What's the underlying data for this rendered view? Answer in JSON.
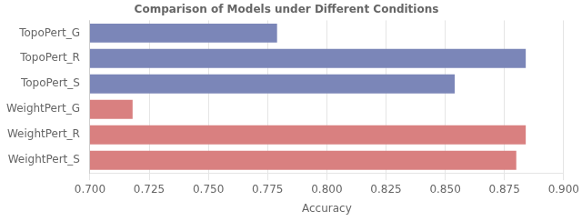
{
  "chart_data": {
    "type": "bar",
    "orientation": "horizontal",
    "title": "Comparison of Models under Different Conditions",
    "xlabel": "Accuracy",
    "categories": [
      "TopoPert_G",
      "TopoPert_R",
      "TopoPert_S",
      "WeightPert_G",
      "WeightPert_R",
      "WeightPert_S"
    ],
    "values": [
      0.779,
      0.884,
      0.854,
      0.718,
      0.884,
      0.88
    ],
    "colors": [
      "#7b86b8",
      "#7b86b8",
      "#7b86b8",
      "#d98080",
      "#d98080",
      "#d98080"
    ],
    "xlim": [
      0.7,
      0.9
    ],
    "xticks": [
      {
        "value": 0.7,
        "label": "0.700"
      },
      0.725,
      {
        "value": 0.75,
        "label": "0.750"
      },
      0.775,
      {
        "value": 0.8,
        "label": "0.800"
      },
      0.825,
      {
        "value": 0.85,
        "label": "0.850"
      },
      0.875,
      {
        "value": 0.9,
        "label": "0.900"
      }
    ],
    "grid": true
  }
}
